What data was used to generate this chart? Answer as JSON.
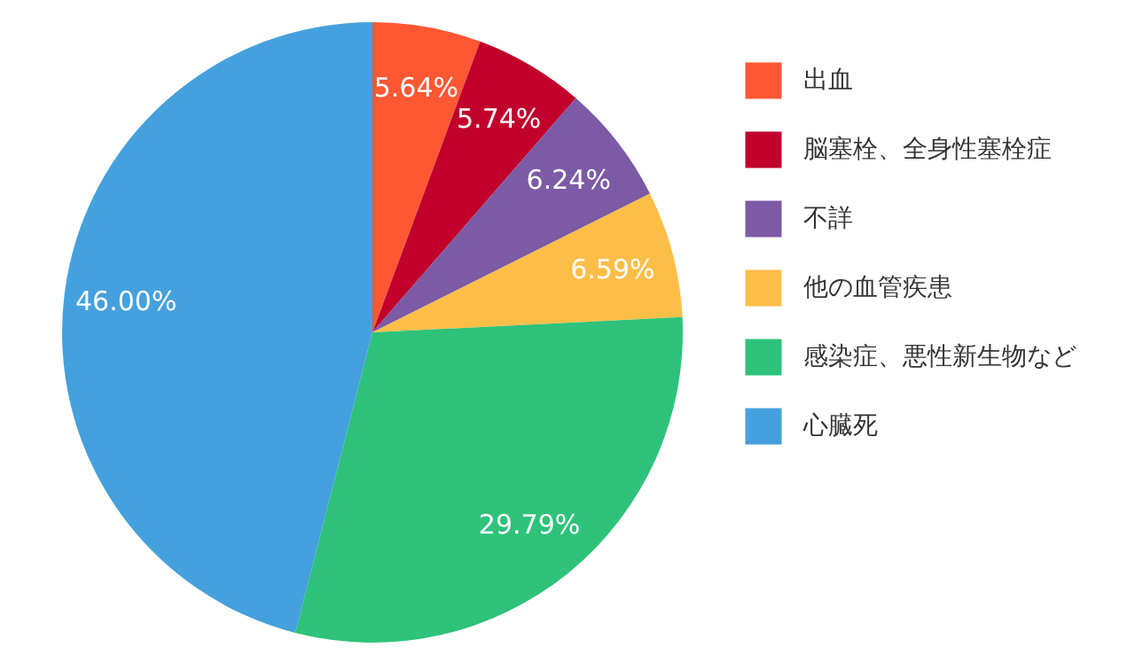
{
  "chart_data": {
    "type": "pie",
    "categories": [
      "出血",
      "脳塞栓、全身性塞栓症",
      "不詳",
      "他の血管疾患",
      "感染症、悪性新生物など",
      "心臓死"
    ],
    "values": [
      5.64,
      5.74,
      6.24,
      6.59,
      29.79,
      46.0
    ],
    "colors": [
      "#fd5734",
      "#c1002c",
      "#7c5aa6",
      "#fdbe48",
      "#2ec27a",
      "#45a1dd"
    ],
    "value_labels": [
      "5.64%",
      "5.74%",
      "6.24%",
      "6.59%",
      "29.79%",
      "46.00%"
    ],
    "legend": "right"
  }
}
